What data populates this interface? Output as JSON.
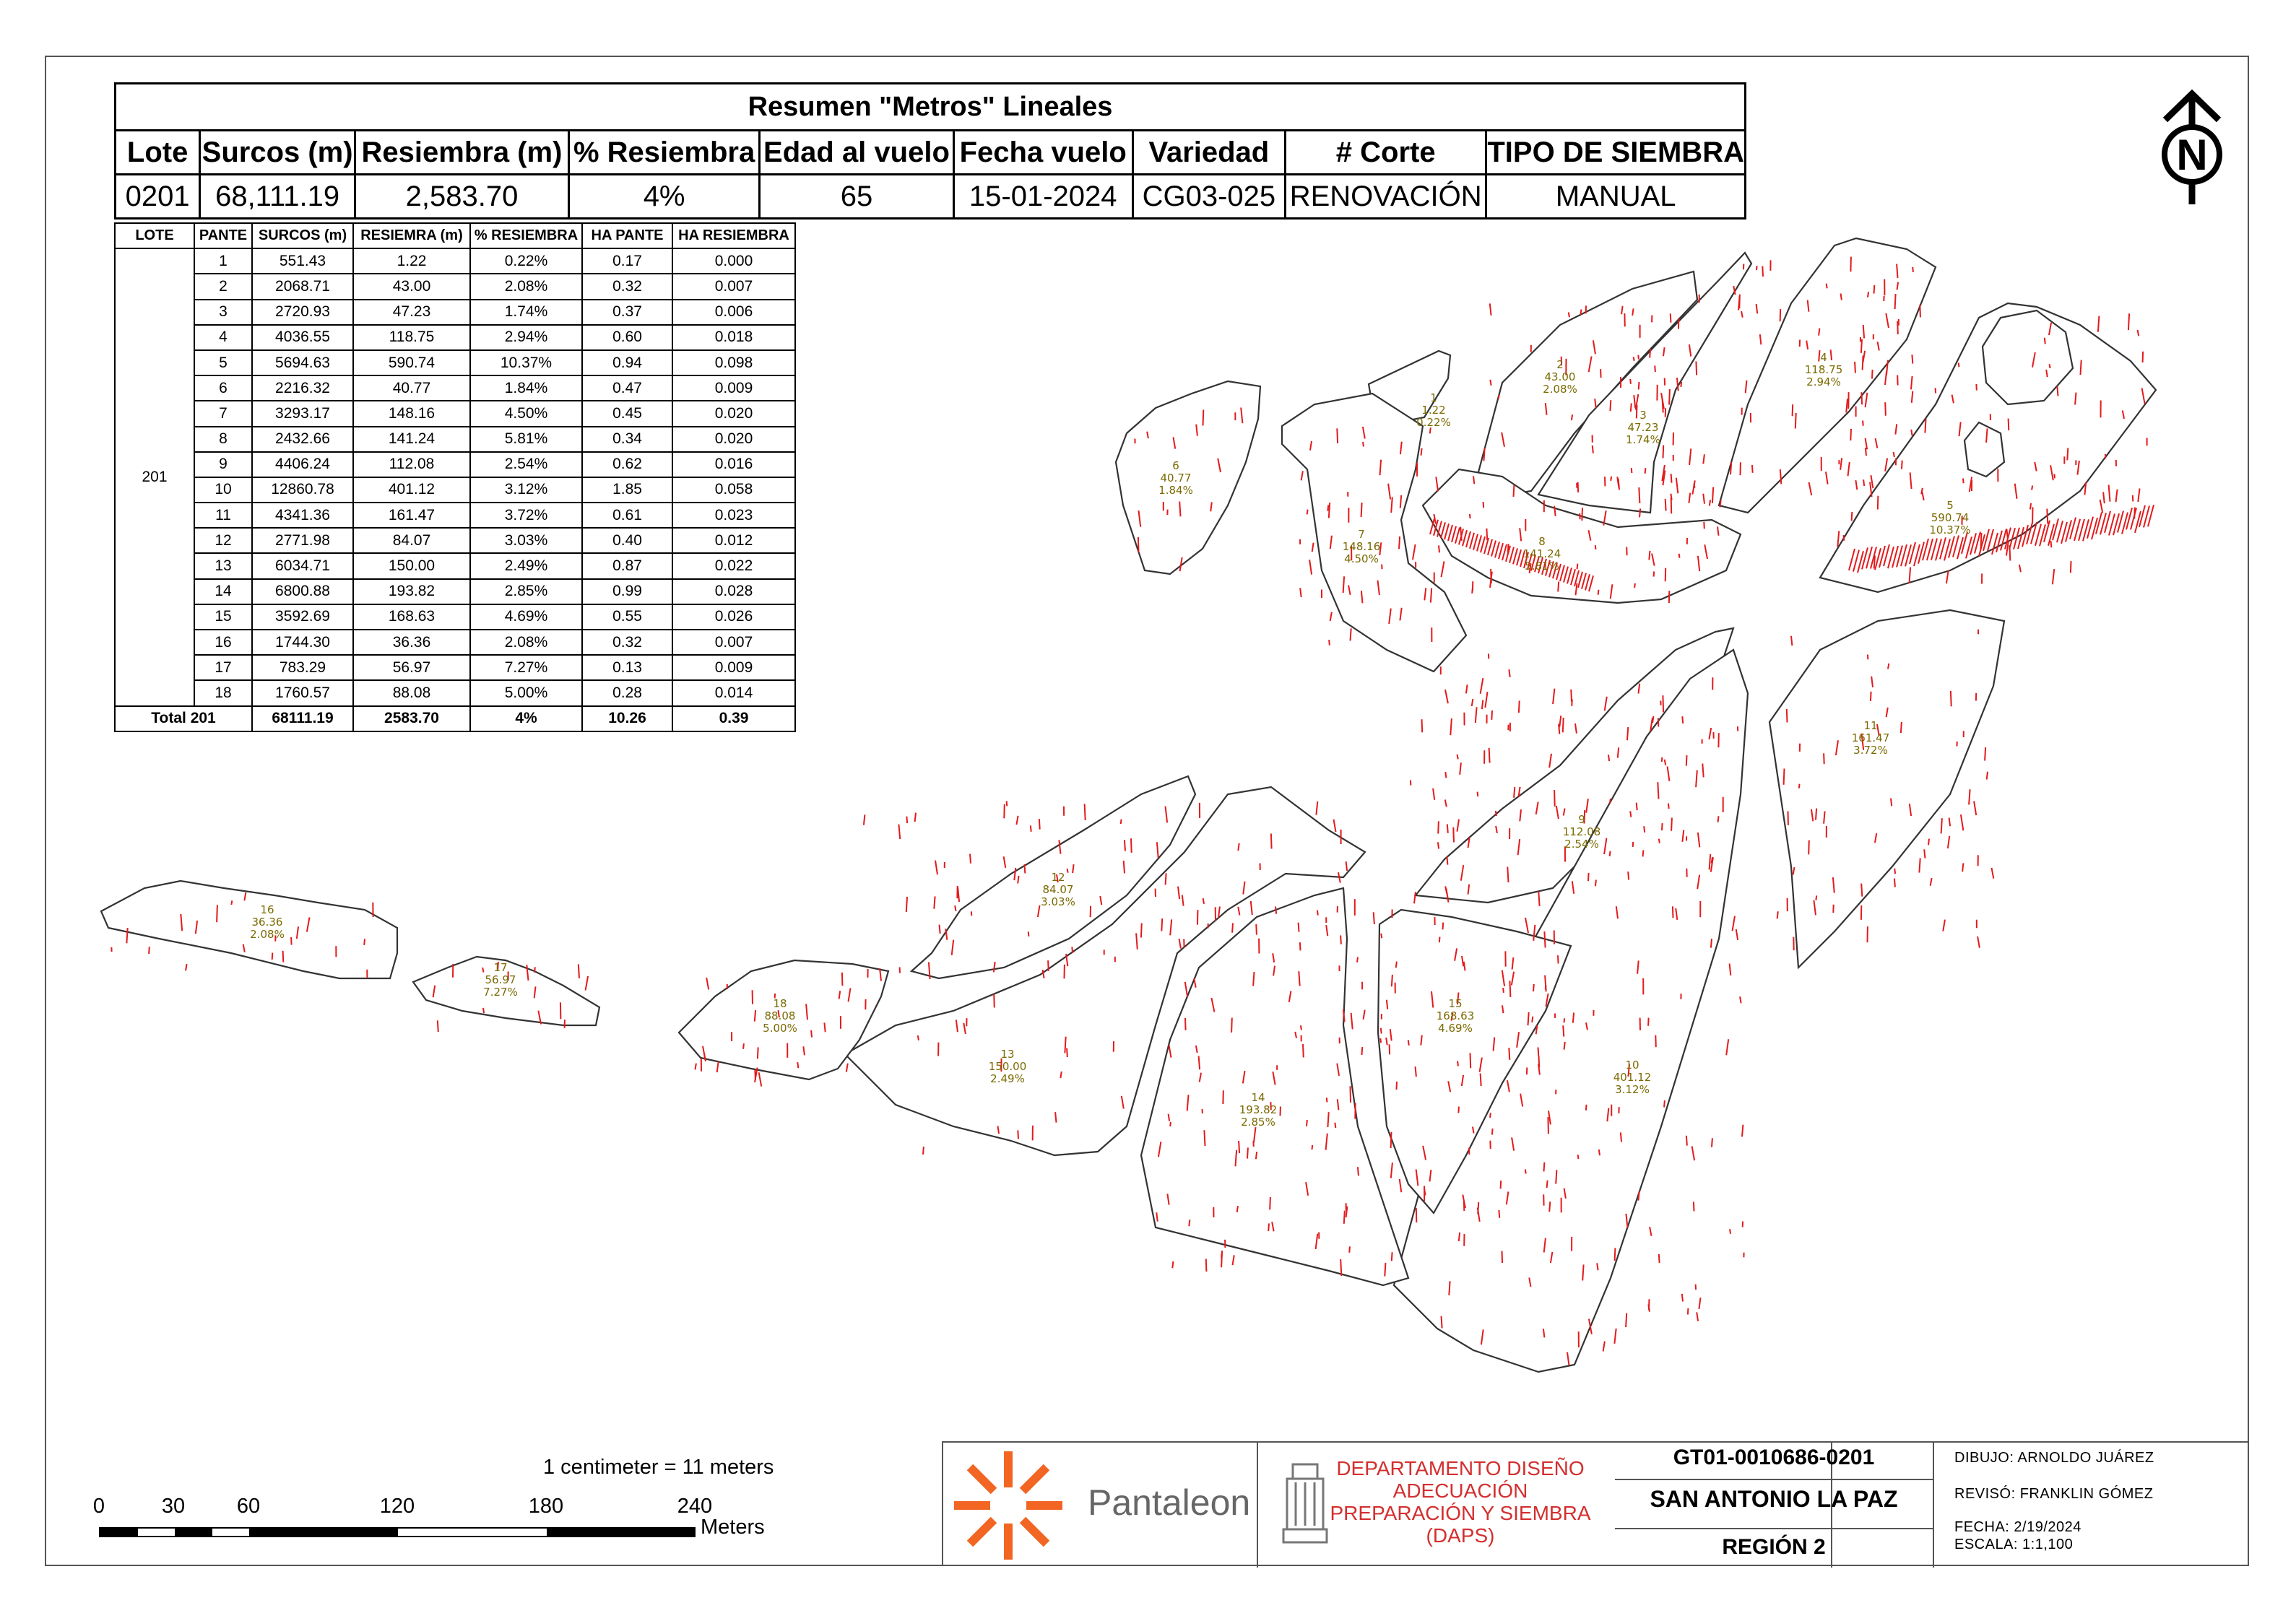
{
  "summary": {
    "title": "Resumen \"Metros\" Lineales",
    "headers": [
      "Lote",
      "Surcos (m)",
      "Resiembra (m)",
      "% Resiembra",
      "Edad al vuelo",
      "Fecha vuelo",
      "Variedad",
      "# Corte",
      "TIPO DE SIEMBRA"
    ],
    "values": [
      "0201",
      "68,111.19",
      "2,583.70",
      "4%",
      "65",
      "15-01-2024",
      "CG03-025",
      "RENOVACIÓN",
      "MANUAL"
    ]
  },
  "detail": {
    "headers": [
      "LOTE",
      "PANTE",
      "SURCOS (m)",
      "RESIEMRA (m)",
      "% RESIEMBRA",
      "HA PANTE",
      "HA RESIEMBRA"
    ],
    "lote": "201",
    "rows": [
      [
        "1",
        "551.43",
        "1.22",
        "0.22%",
        "0.17",
        "0.000"
      ],
      [
        "2",
        "2068.71",
        "43.00",
        "2.08%",
        "0.32",
        "0.007"
      ],
      [
        "3",
        "2720.93",
        "47.23",
        "1.74%",
        "0.37",
        "0.006"
      ],
      [
        "4",
        "4036.55",
        "118.75",
        "2.94%",
        "0.60",
        "0.018"
      ],
      [
        "5",
        "5694.63",
        "590.74",
        "10.37%",
        "0.94",
        "0.098"
      ],
      [
        "6",
        "2216.32",
        "40.77",
        "1.84%",
        "0.47",
        "0.009"
      ],
      [
        "7",
        "3293.17",
        "148.16",
        "4.50%",
        "0.45",
        "0.020"
      ],
      [
        "8",
        "2432.66",
        "141.24",
        "5.81%",
        "0.34",
        "0.020"
      ],
      [
        "9",
        "4406.24",
        "112.08",
        "2.54%",
        "0.62",
        "0.016"
      ],
      [
        "10",
        "12860.78",
        "401.12",
        "3.12%",
        "1.85",
        "0.058"
      ],
      [
        "11",
        "4341.36",
        "161.47",
        "3.72%",
        "0.61",
        "0.023"
      ],
      [
        "12",
        "2771.98",
        "84.07",
        "3.03%",
        "0.40",
        "0.012"
      ],
      [
        "13",
        "6034.71",
        "150.00",
        "2.49%",
        "0.87",
        "0.022"
      ],
      [
        "14",
        "6800.88",
        "193.82",
        "2.85%",
        "0.99",
        "0.028"
      ],
      [
        "15",
        "3592.69",
        "168.63",
        "4.69%",
        "0.55",
        "0.026"
      ],
      [
        "16",
        "1744.30",
        "36.36",
        "2.08%",
        "0.32",
        "0.007"
      ],
      [
        "17",
        "783.29",
        "56.97",
        "7.27%",
        "0.13",
        "0.009"
      ],
      [
        "18",
        "1760.57",
        "88.08",
        "5.00%",
        "0.28",
        "0.014"
      ]
    ],
    "total": [
      "Total 201",
      "68111.19",
      "2583.70",
      "4%",
      "10.26",
      "0.39"
    ]
  },
  "map": {
    "plot_fill": "#ffffff",
    "plot_stroke": "#333333",
    "mark_color": "#e31a1c",
    "label_color": "#7a6a00",
    "labels": [
      {
        "id": "1",
        "m": "1.22",
        "p": "0.22%"
      },
      {
        "id": "2",
        "m": "43.00",
        "p": "2.08%"
      },
      {
        "id": "3",
        "m": "47.23",
        "p": "1.74%"
      },
      {
        "id": "4",
        "m": "118.75",
        "p": "2.94%"
      },
      {
        "id": "5",
        "m": "590.74",
        "p": "10.37%"
      },
      {
        "id": "6",
        "m": "40.77",
        "p": "1.84%"
      },
      {
        "id": "7",
        "m": "148.16",
        "p": "4.50%"
      },
      {
        "id": "8",
        "m": "141.24",
        "p": "5.81%"
      },
      {
        "id": "9",
        "m": "112.08",
        "p": "2.54%"
      },
      {
        "id": "10",
        "m": "401.12",
        "p": "3.12%"
      },
      {
        "id": "11",
        "m": "161.47",
        "p": "3.72%"
      },
      {
        "id": "12",
        "m": "84.07",
        "p": "3.03%"
      },
      {
        "id": "13",
        "m": "150.00",
        "p": "2.49%"
      },
      {
        "id": "14",
        "m": "193.82",
        "p": "2.85%"
      },
      {
        "id": "15",
        "m": "168.63",
        "p": "4.69%"
      },
      {
        "id": "16",
        "m": "36.36",
        "p": "2.08%"
      },
      {
        "id": "17",
        "m": "56.97",
        "p": "7.27%"
      },
      {
        "id": "18",
        "m": "88.08",
        "p": "5.00%"
      }
    ]
  },
  "north_arrow": {
    "letter": "N"
  },
  "scale": {
    "note": "1 centimeter = 11 meters",
    "ticks": [
      "0",
      "30",
      "60",
      "120",
      "180",
      "240"
    ],
    "unit": "Meters"
  },
  "title_block": {
    "brand": "Pantaleon",
    "brand_color": "#f26522",
    "department": "DEPARTAMENTO DISEÑO ADECUACIÓN PREPARACIÓN Y SIEMBRA (DAPS)",
    "department_color": "#d32f2f",
    "code": "GT01-0010686-0201",
    "farm": "SAN ANTONIO LA PAZ",
    "region": "REGIÓN 2",
    "dibujo": "DIBUJO: ARNOLDO JUÁREZ",
    "reviso": "REVISÓ: FRANKLIN GÓMEZ",
    "fecha": "FECHA: 2/19/2024",
    "escala": "ESCALA:    1:1,100"
  }
}
